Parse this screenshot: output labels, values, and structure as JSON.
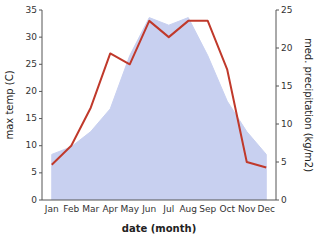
{
  "chart_data": {
    "type": "line",
    "categories": [
      "Jan",
      "Feb",
      "Mar",
      "Apr",
      "May",
      "Jun",
      "Jul",
      "Aug",
      "Sep",
      "Oct",
      "Nov",
      "Dec"
    ],
    "xlabel": "date (month)",
    "ylabel": "max temp (C)",
    "y2label": "med. precipitation (kg/m2)",
    "ylim": [
      0,
      35
    ],
    "yticks": [
      0,
      5,
      10,
      15,
      20,
      25,
      30,
      35
    ],
    "y2lim": [
      0,
      25
    ],
    "y2ticks": [
      0,
      5,
      10,
      15,
      20,
      25
    ],
    "series": [
      {
        "type": "area",
        "axis": "y2",
        "color": "#c8d0f0",
        "values": [
          6,
          7,
          9,
          12,
          19,
          24,
          23,
          24,
          19,
          13,
          9,
          6
        ]
      },
      {
        "type": "line",
        "color": "#c0392b",
        "values": [
          6.5,
          10,
          17,
          27,
          25,
          33,
          30,
          33,
          33,
          24,
          7,
          6
        ]
      }
    ]
  }
}
